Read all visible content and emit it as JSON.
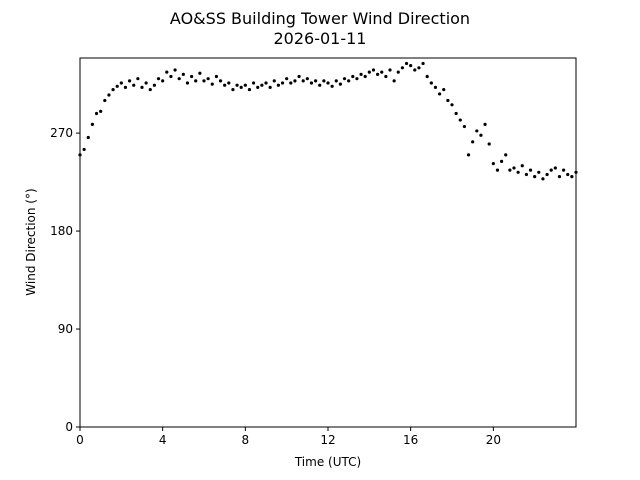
{
  "chart_data": {
    "type": "scatter",
    "title": "AO&SS Building Tower Wind Direction",
    "subtitle": "2026-01-11",
    "x_label": "Time (UTC)",
    "y_label": "Wind Direction (°)",
    "color": "#000000",
    "xlim": [
      0,
      24
    ],
    "ylim": [
      0,
      339
    ],
    "xticks": [
      0,
      4,
      8,
      12,
      16,
      20
    ],
    "yticks": [
      0,
      90,
      180,
      270
    ],
    "x": [
      0,
      0.2,
      0.4,
      0.6,
      0.8,
      1.0,
      1.2,
      1.4,
      1.6,
      1.8,
      2.0,
      2.2,
      2.4,
      2.6,
      2.8,
      3.0,
      3.2,
      3.4,
      3.6,
      3.8,
      4.0,
      4.2,
      4.4,
      4.6,
      4.8,
      5.0,
      5.2,
      5.4,
      5.6,
      5.8,
      6.0,
      6.2,
      6.4,
      6.6,
      6.8,
      7.0,
      7.2,
      7.4,
      7.6,
      7.8,
      8.0,
      8.2,
      8.4,
      8.6,
      8.8,
      9.0,
      9.2,
      9.4,
      9.6,
      9.8,
      10.0,
      10.2,
      10.4,
      10.6,
      10.8,
      11.0,
      11.2,
      11.4,
      11.6,
      11.8,
      12.0,
      12.2,
      12.4,
      12.6,
      12.8,
      13.0,
      13.2,
      13.4,
      13.6,
      13.8,
      14.0,
      14.2,
      14.4,
      14.6,
      14.8,
      15.0,
      15.2,
      15.4,
      15.6,
      15.8,
      16.0,
      16.2,
      16.4,
      16.6,
      16.8,
      17.0,
      17.2,
      17.4,
      17.6,
      17.8,
      18.0,
      18.2,
      18.4,
      18.6,
      18.8,
      19.0,
      19.2,
      19.4,
      19.6,
      19.8,
      20.0,
      20.2,
      20.4,
      20.6,
      20.8,
      21.0,
      21.2,
      21.4,
      21.6,
      21.8,
      22.0,
      22.2,
      22.4,
      22.6,
      22.8,
      23.0,
      23.2,
      23.4,
      23.6,
      23.8,
      24.0
    ],
    "values": [
      250,
      255,
      266,
      278,
      288,
      290,
      300,
      305,
      310,
      313,
      316,
      312,
      318,
      314,
      320,
      312,
      316,
      310,
      314,
      320,
      318,
      326,
      322,
      328,
      320,
      324,
      316,
      322,
      318,
      325,
      318,
      320,
      315,
      322,
      318,
      314,
      316,
      310,
      314,
      312,
      314,
      310,
      316,
      312,
      314,
      316,
      312,
      318,
      314,
      316,
      320,
      316,
      318,
      322,
      318,
      320,
      316,
      318,
      314,
      318,
      316,
      313,
      318,
      315,
      320,
      318,
      322,
      320,
      324,
      322,
      326,
      328,
      324,
      326,
      322,
      328,
      318,
      326,
      330,
      334,
      332,
      328,
      330,
      334,
      322,
      316,
      312,
      306,
      310,
      300,
      296,
      288,
      282,
      276,
      250,
      262,
      272,
      268,
      278,
      260,
      242,
      236,
      244,
      250,
      236,
      238,
      234,
      240,
      232,
      236,
      230,
      234,
      228,
      232,
      236,
      238,
      230,
      236,
      232,
      230,
      234
    ]
  }
}
